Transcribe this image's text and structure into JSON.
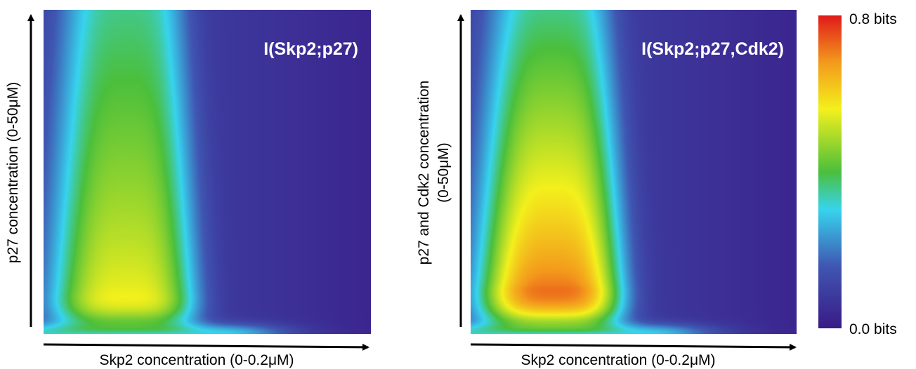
{
  "chart_data": [
    {
      "type": "heatmap",
      "title": "I(Skp2;p27)",
      "xlabel": "Skp2 concentration (0-0.2μM)",
      "ylabel_lines": [
        "p27 concentration (0-50μM)"
      ],
      "xlim": [
        0,
        0.2
      ],
      "ylim": [
        0,
        50
      ],
      "value_range": [
        0.0,
        0.8
      ],
      "peak": {
        "x": 0.05,
        "y": 6,
        "value": 0.56
      },
      "ridge_x": 0.05,
      "ridge_value_at_top": 0.36,
      "background_value": 0.1,
      "far_right_value": 0.03
    },
    {
      "type": "heatmap",
      "title": "I(Skp2;p27,Cdk2)",
      "xlabel": "Skp2 concentration (0-0.2μM)",
      "ylabel_lines": [
        "p27 and Cdk2 concentration",
        "(0-50μM)"
      ],
      "xlim": [
        0,
        0.2
      ],
      "ylim": [
        0,
        50
      ],
      "value_range": [
        0.0,
        0.8
      ],
      "peak": {
        "x": 0.05,
        "y": 7,
        "value": 0.72
      },
      "ridge_x": 0.05,
      "ridge_value_at_top": 0.36,
      "background_value": 0.1,
      "far_right_value": 0.03
    }
  ],
  "colorbar": {
    "max_label": "0.8 bits",
    "min_label": "0.0 bits",
    "stops": [
      "#3a1a86",
      "#3f57b2",
      "#37d4ee",
      "#4bbf3c",
      "#f3f01c",
      "#f39a1c",
      "#e01a1a"
    ]
  }
}
